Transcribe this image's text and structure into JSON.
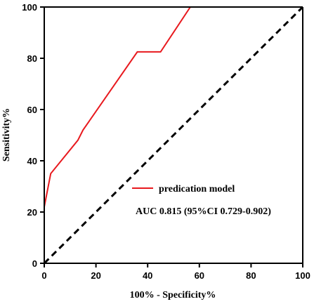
{
  "chart_data": {
    "type": "line",
    "title": "",
    "xlabel": "100% - Specificity%",
    "ylabel": "Sensitivity%",
    "xlim": [
      0,
      100
    ],
    "ylim": [
      0,
      100
    ],
    "xticks": [
      0,
      20,
      40,
      60,
      80,
      100
    ],
    "yticks": [
      0,
      20,
      40,
      60,
      80,
      100
    ],
    "grid": false,
    "legend_position": "center-right",
    "series": [
      {
        "name": "predication model",
        "color": "#e8191e",
        "style": "solid",
        "x": [
          0,
          0,
          2.5,
          13,
          15,
          36,
          45,
          56.5,
          100
        ],
        "y": [
          0,
          22,
          35,
          48,
          52,
          82.5,
          82.5,
          100,
          100
        ]
      },
      {
        "color": "#000000",
        "style": "dashed",
        "x": [
          0,
          100
        ],
        "y": [
          0,
          100
        ]
      }
    ],
    "annotation": "AUC 0.815 (95%CI 0.729-0.902)"
  }
}
